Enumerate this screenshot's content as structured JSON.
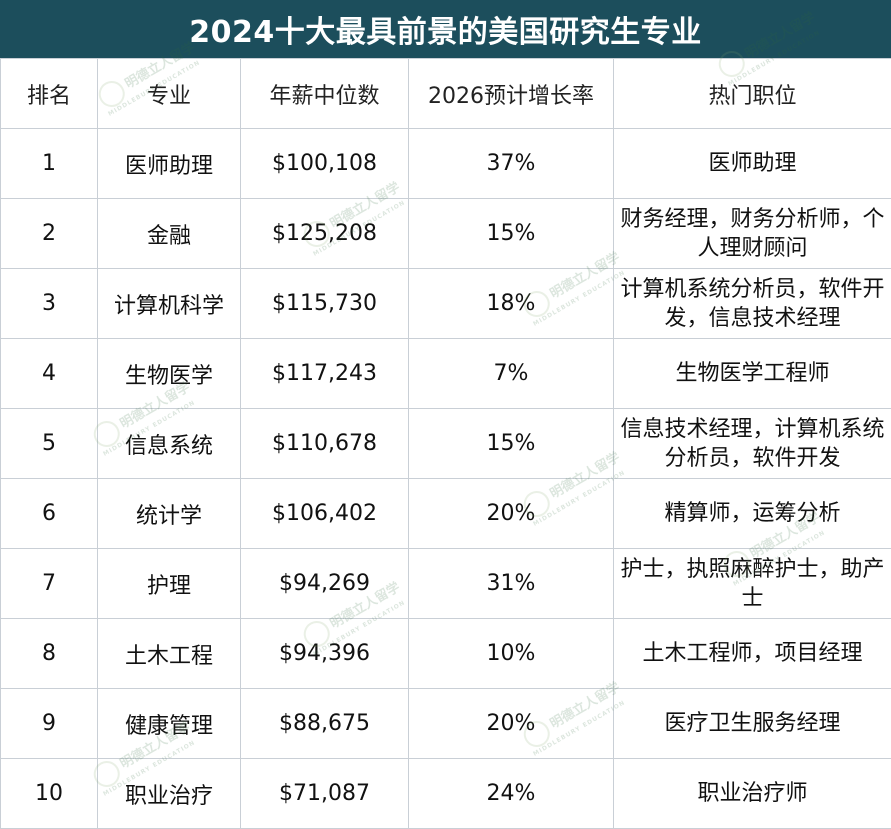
{
  "title": "2024十大最具前景的美国研究生专业",
  "columns": [
    "排名",
    "专业",
    "年薪中位数",
    "2026预计增长率",
    "热门职位"
  ],
  "rows": [
    {
      "rank": "1",
      "major": "医师助理",
      "salary": "$100,108",
      "growth": "37%",
      "jobs": "医师助理"
    },
    {
      "rank": "2",
      "major": "金融",
      "salary": "$125,208",
      "growth": "15%",
      "jobs": "财务经理，财务分析师，个人理财顾问"
    },
    {
      "rank": "3",
      "major": "计算机科学",
      "salary": "$115,730",
      "growth": "18%",
      "jobs": "计算机系统分析员，软件开发，信息技术经理"
    },
    {
      "rank": "4",
      "major": "生物医学",
      "salary": "$117,243",
      "growth": "7%",
      "jobs": "生物医学工程师"
    },
    {
      "rank": "5",
      "major": "信息系统",
      "salary": "$110,678",
      "growth": "15%",
      "jobs": "信息技术经理，计算机系统分析员，软件开发"
    },
    {
      "rank": "6",
      "major": "统计学",
      "salary": "$106,402",
      "growth": "20%",
      "jobs": "精算师，运筹分析"
    },
    {
      "rank": "7",
      "major": "护理",
      "salary": "$94,269",
      "growth": "31%",
      "jobs": "护士，执照麻醉护士，助产士"
    },
    {
      "rank": "8",
      "major": "土木工程",
      "salary": "$94,396",
      "growth": "10%",
      "jobs": "土木工程师，项目经理"
    },
    {
      "rank": "9",
      "major": "健康管理",
      "salary": "$88,675",
      "growth": "20%",
      "jobs": "医疗卫生服务经理"
    },
    {
      "rank": "10",
      "major": "职业治疗",
      "salary": "$71,087",
      "growth": "24%",
      "jobs": "职业治疗师"
    }
  ],
  "watermark": {
    "cn": "明德立人留学",
    "en": "MIDDLEBURY EDUCATION"
  },
  "colors": {
    "title_bg": "#1c4e5c",
    "title_text": "#ffffff",
    "grid_line": "#c9cfd6"
  }
}
